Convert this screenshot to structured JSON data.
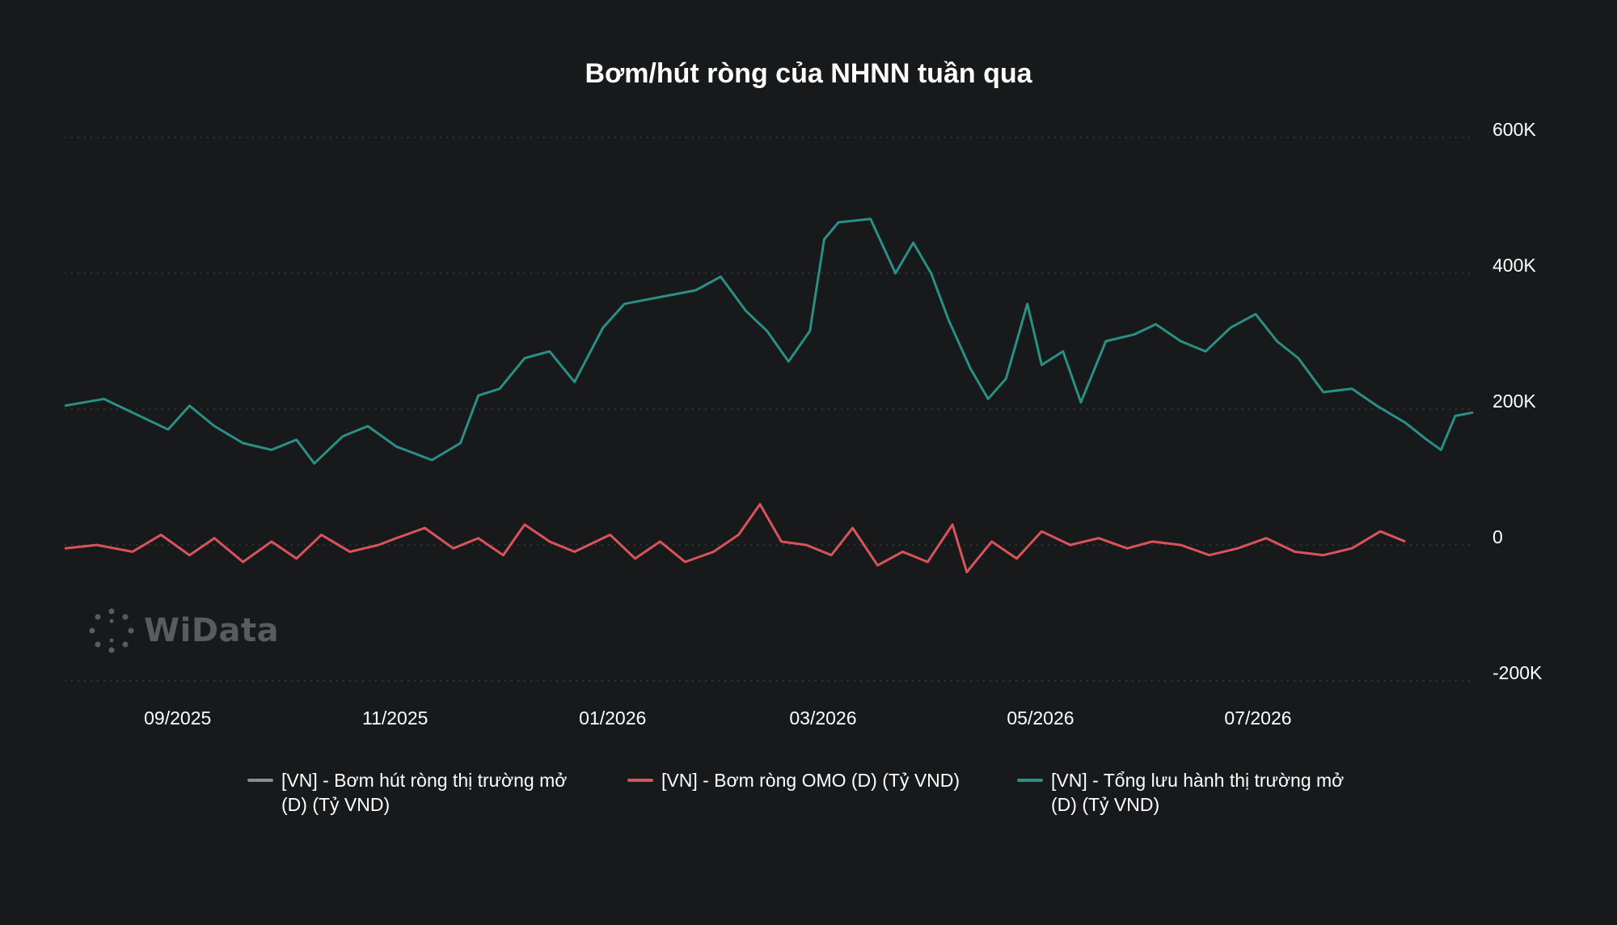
{
  "title": "Bơm/hút ròng của NHNN tuần qua",
  "watermark": "WiData",
  "colors": {
    "background": "#18191b",
    "series_gray": "#8c8c8c",
    "series_red": "#d9545a",
    "series_teal": "#2a8f84"
  },
  "chart_data": {
    "type": "line",
    "title": "Bơm/hút ròng của NHNN tuần qua",
    "xlabel": "",
    "ylabel": "",
    "x_range": [
      "2025-08-01",
      "2026-08-31"
    ],
    "x_ticks": [
      {
        "date": "2025-09-01",
        "label": "09/2025"
      },
      {
        "date": "2025-11-01",
        "label": "11/2025"
      },
      {
        "date": "2026-01-01",
        "label": "01/2026"
      },
      {
        "date": "2026-03-01",
        "label": "03/2026"
      },
      {
        "date": "2026-05-01",
        "label": "05/2026"
      },
      {
        "date": "2026-07-01",
        "label": "07/2026"
      }
    ],
    "y_axis": {
      "position": "right",
      "min": -200000,
      "max": 600000,
      "ticks": [
        -200000,
        0,
        200000,
        400000,
        600000
      ],
      "tick_labels": [
        "-200K",
        "0",
        "200K",
        "400K",
        "600K"
      ]
    },
    "grid": true,
    "legend_position": "bottom",
    "series": [
      {
        "name": "[VN] - Bơm hút ròng thị trường mở\n(D) (Tỷ VND)",
        "color": "#8c8c8c",
        "points": []
      },
      {
        "name": "[VN] - Bơm ròng OMO (D) (Tỷ VND)",
        "color": "#d9545a",
        "points": [
          [
            "2025-08-01",
            -5000
          ],
          [
            "2025-08-10",
            0
          ],
          [
            "2025-08-20",
            -10000
          ],
          [
            "2025-08-28",
            15000
          ],
          [
            "2025-09-05",
            -15000
          ],
          [
            "2025-09-12",
            10000
          ],
          [
            "2025-09-20",
            -25000
          ],
          [
            "2025-09-28",
            5000
          ],
          [
            "2025-10-05",
            -20000
          ],
          [
            "2025-10-12",
            15000
          ],
          [
            "2025-10-20",
            -10000
          ],
          [
            "2025-10-28",
            0
          ],
          [
            "2025-11-02",
            10000
          ],
          [
            "2025-11-10",
            25000
          ],
          [
            "2025-11-18",
            -5000
          ],
          [
            "2025-11-25",
            10000
          ],
          [
            "2025-12-02",
            -15000
          ],
          [
            "2025-12-08",
            30000
          ],
          [
            "2025-12-15",
            5000
          ],
          [
            "2025-12-22",
            -10000
          ],
          [
            "2026-01-01",
            15000
          ],
          [
            "2026-01-08",
            -20000
          ],
          [
            "2026-01-15",
            5000
          ],
          [
            "2026-01-22",
            -25000
          ],
          [
            "2026-01-30",
            -10000
          ],
          [
            "2026-02-06",
            15000
          ],
          [
            "2026-02-12",
            60000
          ],
          [
            "2026-02-18",
            5000
          ],
          [
            "2026-02-25",
            0
          ],
          [
            "2026-03-04",
            -15000
          ],
          [
            "2026-03-10",
            25000
          ],
          [
            "2026-03-17",
            -30000
          ],
          [
            "2026-03-24",
            -10000
          ],
          [
            "2026-03-31",
            -25000
          ],
          [
            "2026-04-07",
            30000
          ],
          [
            "2026-04-11",
            -40000
          ],
          [
            "2026-04-18",
            5000
          ],
          [
            "2026-04-25",
            -20000
          ],
          [
            "2026-05-02",
            20000
          ],
          [
            "2026-05-10",
            0
          ],
          [
            "2026-05-18",
            10000
          ],
          [
            "2026-05-26",
            -5000
          ],
          [
            "2026-06-02",
            5000
          ],
          [
            "2026-06-10",
            0
          ],
          [
            "2026-06-18",
            -15000
          ],
          [
            "2026-06-26",
            -5000
          ],
          [
            "2026-07-04",
            10000
          ],
          [
            "2026-07-12",
            -10000
          ],
          [
            "2026-07-20",
            -15000
          ],
          [
            "2026-07-28",
            -5000
          ],
          [
            "2026-08-05",
            20000
          ],
          [
            "2026-08-12",
            5000
          ]
        ]
      },
      {
        "name": "[VN] - Tổng lưu hành thị trường mở\n(D) (Tỷ VND)",
        "color": "#2a8f84",
        "points": [
          [
            "2025-08-01",
            205000
          ],
          [
            "2025-08-12",
            215000
          ],
          [
            "2025-08-22",
            190000
          ],
          [
            "2025-08-30",
            170000
          ],
          [
            "2025-09-05",
            205000
          ],
          [
            "2025-09-12",
            175000
          ],
          [
            "2025-09-20",
            150000
          ],
          [
            "2025-09-28",
            140000
          ],
          [
            "2025-10-05",
            155000
          ],
          [
            "2025-10-10",
            120000
          ],
          [
            "2025-10-18",
            160000
          ],
          [
            "2025-10-25",
            175000
          ],
          [
            "2025-11-02",
            145000
          ],
          [
            "2025-11-12",
            125000
          ],
          [
            "2025-11-20",
            150000
          ],
          [
            "2025-11-25",
            220000
          ],
          [
            "2025-12-01",
            230000
          ],
          [
            "2025-12-08",
            275000
          ],
          [
            "2025-12-15",
            285000
          ],
          [
            "2025-12-22",
            240000
          ],
          [
            "2025-12-30",
            320000
          ],
          [
            "2026-01-05",
            355000
          ],
          [
            "2026-01-15",
            365000
          ],
          [
            "2026-01-25",
            375000
          ],
          [
            "2026-02-01",
            395000
          ],
          [
            "2026-02-08",
            345000
          ],
          [
            "2026-02-14",
            315000
          ],
          [
            "2026-02-20",
            270000
          ],
          [
            "2026-02-26",
            315000
          ],
          [
            "2026-03-02",
            450000
          ],
          [
            "2026-03-06",
            475000
          ],
          [
            "2026-03-15",
            480000
          ],
          [
            "2026-03-22",
            400000
          ],
          [
            "2026-03-27",
            445000
          ],
          [
            "2026-04-01",
            400000
          ],
          [
            "2026-04-06",
            330000
          ],
          [
            "2026-04-12",
            260000
          ],
          [
            "2026-04-17",
            215000
          ],
          [
            "2026-04-22",
            245000
          ],
          [
            "2026-04-28",
            355000
          ],
          [
            "2026-05-02",
            265000
          ],
          [
            "2026-05-08",
            285000
          ],
          [
            "2026-05-13",
            210000
          ],
          [
            "2026-05-20",
            300000
          ],
          [
            "2026-05-28",
            310000
          ],
          [
            "2026-06-03",
            325000
          ],
          [
            "2026-06-10",
            300000
          ],
          [
            "2026-06-17",
            285000
          ],
          [
            "2026-06-24",
            320000
          ],
          [
            "2026-07-01",
            340000
          ],
          [
            "2026-07-07",
            300000
          ],
          [
            "2026-07-13",
            275000
          ],
          [
            "2026-07-20",
            225000
          ],
          [
            "2026-07-28",
            230000
          ],
          [
            "2026-08-04",
            205000
          ],
          [
            "2026-08-12",
            180000
          ],
          [
            "2026-08-18",
            155000
          ],
          [
            "2026-08-22",
            140000
          ],
          [
            "2026-08-26",
            190000
          ],
          [
            "2026-08-31",
            195000
          ]
        ]
      }
    ]
  },
  "legend": [
    {
      "label": "[VN] - Bơm hút ròng thị trường mở\n(D) (Tỷ VND)",
      "color": "#8c8c8c"
    },
    {
      "label": "[VN] - Bơm ròng OMO (D) (Tỷ VND)",
      "color": "#d9545a"
    },
    {
      "label": "[VN] - Tổng lưu hành thị trường mở\n(D) (Tỷ VND)",
      "color": "#2a8f84"
    }
  ]
}
